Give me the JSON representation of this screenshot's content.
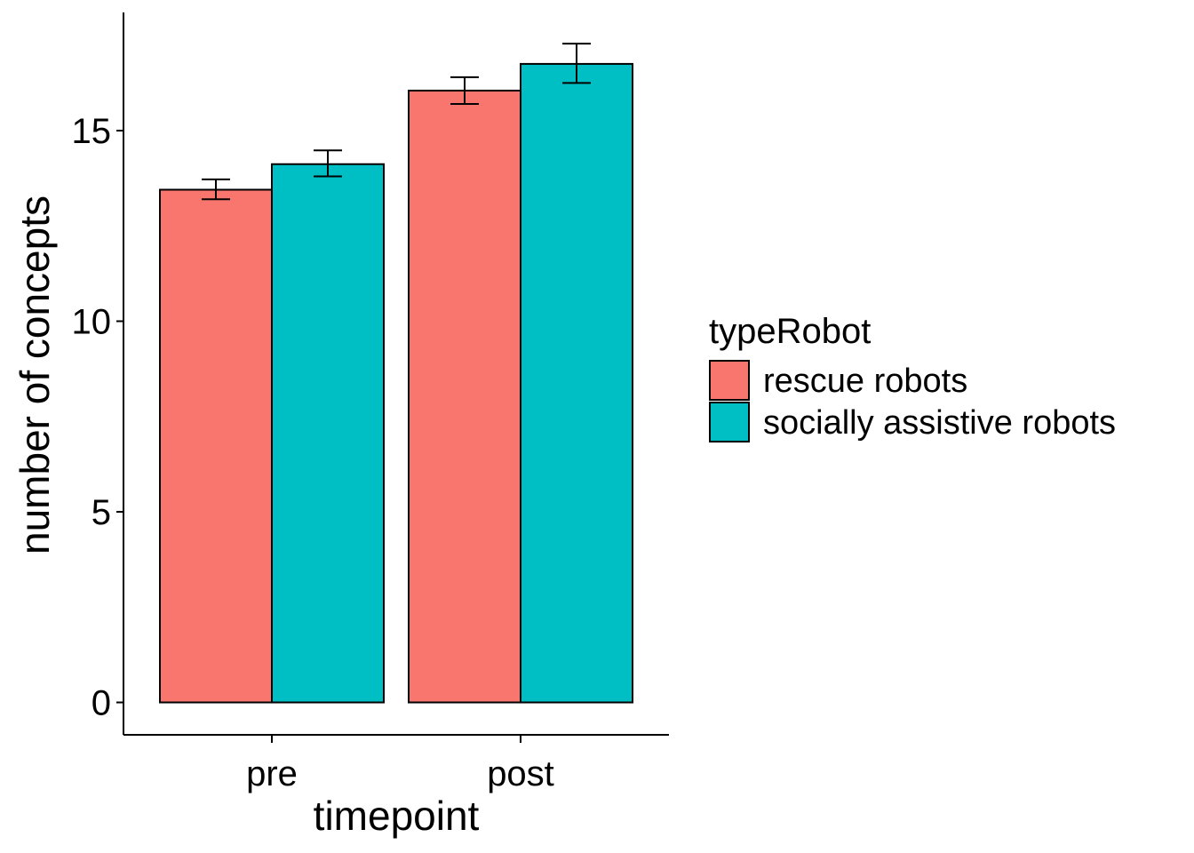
{
  "chart_data": {
    "type": "bar",
    "title": "",
    "xlabel": "timepoint",
    "ylabel": "number of concepts",
    "categories": [
      "pre",
      "post"
    ],
    "ylim": [
      -0.85,
      18.1
    ],
    "yticks": [
      0,
      5,
      10,
      15
    ],
    "y_tick_labels": [
      "0",
      "5",
      "10",
      "15"
    ],
    "grid": false,
    "legend": {
      "title": "typeRobot",
      "position": "right"
    },
    "series": [
      {
        "name": "rescue robots",
        "color": "#F8766D",
        "values": [
          13.45,
          16.05
        ],
        "error_low": [
          13.2,
          15.7
        ],
        "error_high": [
          13.72,
          16.4
        ]
      },
      {
        "name": "socially assistive robots",
        "color": "#00BFC4",
        "values": [
          14.12,
          16.75
        ],
        "error_low": [
          13.8,
          16.25
        ],
        "error_high": [
          14.48,
          17.28
        ]
      }
    ]
  }
}
